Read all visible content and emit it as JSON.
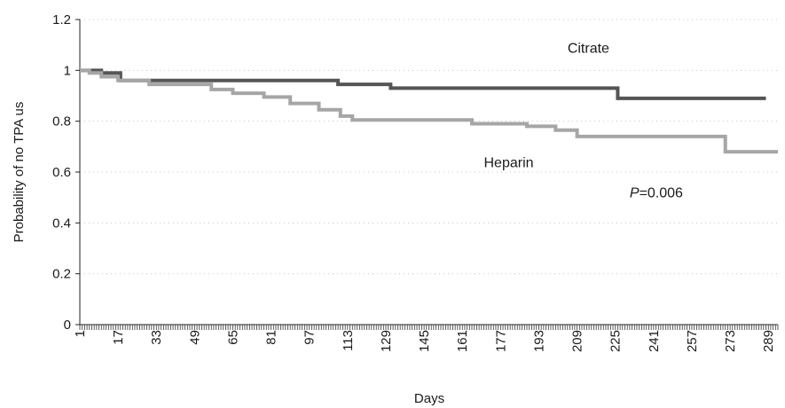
{
  "chart_data": {
    "type": "line",
    "title": "",
    "xlabel": "Days",
    "ylabel": "Probability of no TPA us",
    "xlim": [
      1,
      293
    ],
    "ylim": [
      0,
      1.2
    ],
    "y_ticks": [
      0,
      0.2,
      0.4,
      0.6,
      0.8,
      1,
      1.2
    ],
    "y_tick_labels": [
      "0",
      "0.2",
      "0.4",
      "0.6",
      "0.8",
      "1",
      "1.2"
    ],
    "x_ticks": [
      1,
      17,
      33,
      49,
      65,
      81,
      97,
      113,
      129,
      145,
      161,
      177,
      193,
      209,
      225,
      241,
      257,
      273,
      289
    ],
    "x_tick_labels": [
      "1",
      "17",
      "33",
      "49",
      "65",
      "81",
      "97",
      "113",
      "129",
      "145",
      "161",
      "177",
      "193",
      "209",
      "225",
      "241",
      "257",
      "273",
      "289"
    ],
    "grid": "dotted horizontal",
    "series": [
      {
        "name": "Citrate",
        "color": "#555555",
        "step": true,
        "x": [
          1,
          10,
          18,
          109,
          131,
          226,
          288
        ],
        "y": [
          1.0,
          0.99,
          0.96,
          0.945,
          0.93,
          0.89,
          0.89
        ]
      },
      {
        "name": "Heparin",
        "color": "#a6a6a6",
        "step": true,
        "x": [
          1,
          5,
          10,
          17,
          30,
          56,
          65,
          78,
          89,
          101,
          110,
          115,
          155,
          165,
          188,
          200,
          209,
          268,
          271,
          293
        ],
        "y": [
          1.0,
          0.99,
          0.975,
          0.96,
          0.945,
          0.925,
          0.91,
          0.895,
          0.87,
          0.845,
          0.82,
          0.805,
          0.805,
          0.79,
          0.78,
          0.765,
          0.74,
          0.74,
          0.68,
          0.68
        ]
      }
    ],
    "annotations": [
      {
        "label": "Citrate",
        "x": 205,
        "y": 1.07
      },
      {
        "label": "Heparin",
        "x": 170,
        "y": 0.62
      },
      {
        "label_prefix": "P",
        "label_suffix": "=0.006",
        "x": 231,
        "y": 0.5
      }
    ]
  }
}
